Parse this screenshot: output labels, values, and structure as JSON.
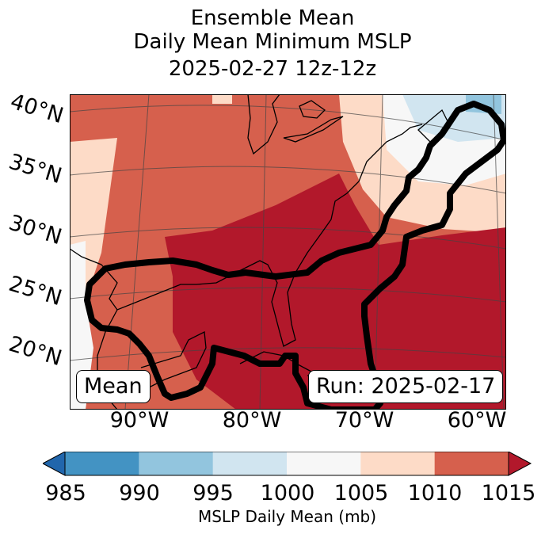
{
  "title": {
    "line1": "Ensemble Mean",
    "line2": "Daily Mean Minimum MSLP",
    "line3": "2025-02-27 12z-12z"
  },
  "latitude_labels": [
    "40°N",
    "35°N",
    "30°N",
    "25°N",
    "20°N"
  ],
  "longitude_labels": [
    "90°W",
    "80°W",
    "70°W",
    "60°W"
  ],
  "badges": {
    "left": "Mean",
    "right": "Run: 2025-02-17"
  },
  "colorbar": {
    "ticks": [
      "985",
      "990",
      "995",
      "1000",
      "1005",
      "1010",
      "1015"
    ],
    "label": "MSLP Daily Mean (mb)",
    "colors": [
      "#2166ac",
      "#4393c3",
      "#92c5de",
      "#d1e5f0",
      "#f7f7f7",
      "#fddbc7",
      "#d6604d",
      "#b2182b"
    ]
  },
  "map_layers": {
    "colors": {
      "red_dark": "#b2182b",
      "red_mid": "#d6604d",
      "peach": "#fddbc7",
      "white": "#f7f7f7",
      "blue_light": "#d1e5f0",
      "blue_mid": "#92c5de",
      "outline": "#000000"
    }
  }
}
